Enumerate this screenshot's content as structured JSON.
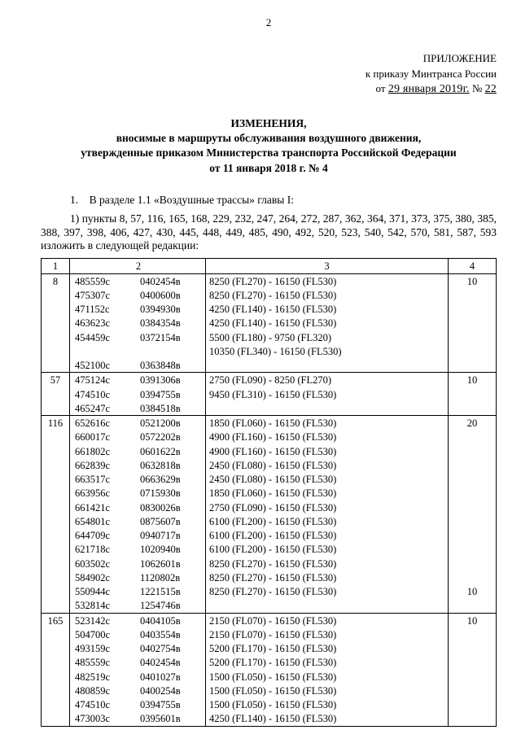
{
  "page_number": "2",
  "appendix": {
    "title": "ПРИЛОЖЕНИЕ",
    "line1": "к приказу Минтранса России",
    "date_prefix": "от",
    "date_hand": "29 января 2019г.",
    "num_prefix": "№",
    "num_hand": "22"
  },
  "heading": {
    "line1": "ИЗМЕНЕНИЯ,",
    "line2": "вносимые в маршруты обслуживания воздушного движения,",
    "line3": "утвержденные приказом Министерства транспорта Российской Федерации",
    "line4": "от 11 января 2018 г. № 4"
  },
  "intro": {
    "p1": "1. В разделе 1.1 «Воздушные трассы» главы I:",
    "p2": "1) пункты 8, 57, 116, 165, 168, 229, 232, 247, 264, 272, 287, 362, 364, 371, 373, 375, 380, 385, 388, 397, 398, 406, 427, 430, 445, 448, 449, 485, 490, 492, 520, 523, 540, 542, 570, 581, 587, 593 изложить в следующей редакции:"
  },
  "table": {
    "header": [
      "1",
      "2",
      "3",
      "4"
    ],
    "groups": [
      {
        "id": "8",
        "c4_first": "10",
        "c4_last": "",
        "rows": [
          {
            "a": "485559с",
            "b": "0402454в",
            "c": "8250 (FL270) - 16150 (FL530)"
          },
          {
            "a": "475307с",
            "b": "0400600в",
            "c": "8250 (FL270) - 16150 (FL530)"
          },
          {
            "a": "471152с",
            "b": "0394930в",
            "c": "4250 (FL140) - 16150 (FL530)"
          },
          {
            "a": "463623с",
            "b": "0384354в",
            "c": "4250 (FL140) - 16150 (FL530)"
          },
          {
            "a": "454459с",
            "b": "0372154в",
            "c": "5500 (FL180) - 9750 (FL320)"
          },
          {
            "a": "",
            "b": "",
            "c": "10350 (FL340) - 16150 (FL530)"
          },
          {
            "a": "452100с",
            "b": "0363848в",
            "c": ""
          }
        ]
      },
      {
        "id": "57",
        "c4_first": "10",
        "c4_last": "",
        "rows": [
          {
            "a": "475124с",
            "b": "0391306в",
            "c": "2750 (FL090) - 8250 (FL270)"
          },
          {
            "a": "474510с",
            "b": "0394755в",
            "c": "9450 (FL310) - 16150 (FL530)"
          },
          {
            "a": "465247с",
            "b": "0384518в",
            "c": ""
          }
        ]
      },
      {
        "id": "116",
        "c4_first": "20",
        "c4_last": "10",
        "rows": [
          {
            "a": "652616с",
            "b": "0521200в",
            "c": "1850 (FL060) - 16150 (FL530)"
          },
          {
            "a": "660017с",
            "b": "0572202в",
            "c": "4900 (FL160) - 16150 (FL530)"
          },
          {
            "a": "661802с",
            "b": "0601622в",
            "c": "4900 (FL160) - 16150 (FL530)"
          },
          {
            "a": "662839с",
            "b": "0632818в",
            "c": "2450 (FL080) - 16150 (FL530)"
          },
          {
            "a": "663517с",
            "b": "0663629в",
            "c": "2450 (FL080) - 16150 (FL530)"
          },
          {
            "a": "663956с",
            "b": "0715930в",
            "c": "1850 (FL060) - 16150 (FL530)"
          },
          {
            "a": "661421с",
            "b": "0830026в",
            "c": "2750 (FL090) - 16150 (FL530)"
          },
          {
            "a": "654801с",
            "b": "0875607в",
            "c": "6100 (FL200) - 16150 (FL530)"
          },
          {
            "a": "644709с",
            "b": "0940717в",
            "c": "6100 (FL200) - 16150 (FL530)"
          },
          {
            "a": "621718с",
            "b": "1020940в",
            "c": "6100 (FL200) - 16150 (FL530)"
          },
          {
            "a": "603502с",
            "b": "1062601в",
            "c": "8250 (FL270) - 16150 (FL530)"
          },
          {
            "a": "584902с",
            "b": "1120802в",
            "c": "8250 (FL270) - 16150 (FL530)"
          },
          {
            "a": "550944с",
            "b": "1221515в",
            "c": "8250 (FL270) - 16150 (FL530)"
          },
          {
            "a": "532814с",
            "b": "1254746в",
            "c": ""
          }
        ]
      },
      {
        "id": "165",
        "c4_first": "10",
        "c4_last": "",
        "rows": [
          {
            "a": "523142с",
            "b": "0404105в",
            "c": "2150 (FL070) - 16150 (FL530)"
          },
          {
            "a": "504700с",
            "b": "0403554в",
            "c": "2150 (FL070) - 16150 (FL530)"
          },
          {
            "a": "493159с",
            "b": "0402754в",
            "c": "5200 (FL170) - 16150 (FL530)"
          },
          {
            "a": "485559с",
            "b": "0402454в",
            "c": "5200 (FL170) - 16150 (FL530)"
          },
          {
            "a": "482519с",
            "b": "0401027в",
            "c": "1500 (FL050) - 16150 (FL530)"
          },
          {
            "a": "480859с",
            "b": "0400254в",
            "c": "1500 (FL050) - 16150 (FL530)"
          },
          {
            "a": "474510с",
            "b": "0394755в",
            "c": "1500 (FL050) - 16150 (FL530)"
          },
          {
            "a": "473003с",
            "b": "0395601в",
            "c": "4250 (FL140) - 16150 (FL530)"
          }
        ]
      }
    ]
  }
}
